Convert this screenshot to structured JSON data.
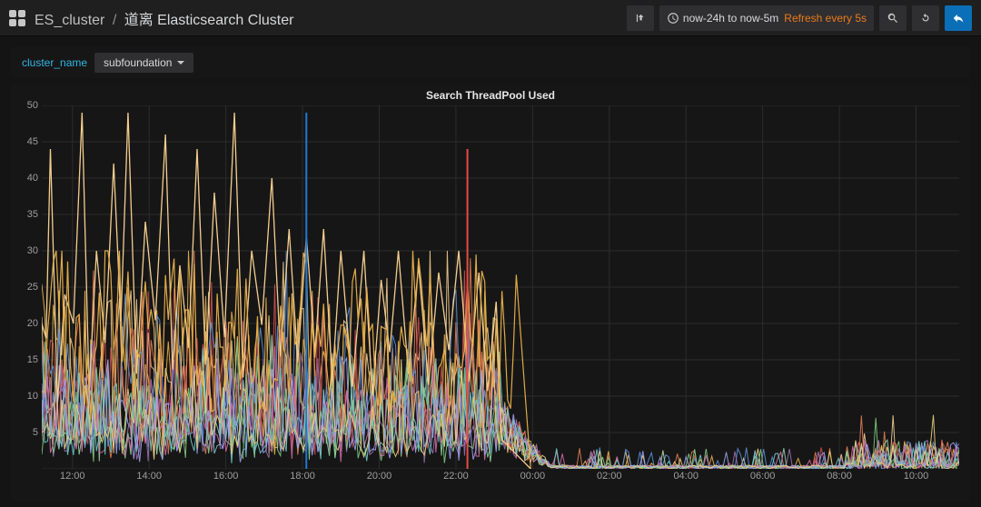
{
  "header": {
    "folder": "ES_cluster",
    "separator": "/",
    "title": "道离 Elasticsearch Cluster",
    "time_range": "now-24h to now-5m",
    "refresh_label": "Refresh every 5s"
  },
  "variables": {
    "label": "cluster_name",
    "value": "subfoundation"
  },
  "chart": {
    "type": "line",
    "title": "Search ThreadPool Used",
    "background_color": "#161616",
    "grid_color": "#2c2c2c",
    "text_color": "#9e9e9e",
    "ylim": [
      0,
      50
    ],
    "ytick_step": 5,
    "x_ticks": [
      "12:00",
      "14:00",
      "16:00",
      "18:00",
      "20:00",
      "22:00",
      "00:00",
      "02:00",
      "04:00",
      "06:00",
      "08:00",
      "10:00"
    ],
    "x_domain_points": 320,
    "breakpoint_index": 160,
    "series_colors": [
      "#f2cc8f",
      "#e8b04b",
      "#e07b53",
      "#c94f4f",
      "#5b8fd6",
      "#9a6fb0",
      "#7fc97f",
      "#8fd19e",
      "#d36ba6",
      "#6fcac9",
      "#a0a0f0",
      "#e7d27c"
    ],
    "highlight_spike": {
      "index": 92,
      "value": 49,
      "color": "#1f78d1",
      "width": 2
    },
    "red_spike": {
      "index": 148,
      "value": 44,
      "color": "#e24d42",
      "width": 2
    },
    "peak_series": {
      "color": "#f2cc8f",
      "peaks_before_break": [
        [
          3,
          44
        ],
        [
          8,
          24
        ],
        [
          14,
          49
        ],
        [
          19,
          30
        ],
        [
          25,
          42
        ],
        [
          30,
          49
        ],
        [
          36,
          34
        ],
        [
          43,
          46
        ],
        [
          48,
          28
        ],
        [
          54,
          44
        ],
        [
          60,
          38
        ],
        [
          67,
          49
        ],
        [
          73,
          30
        ],
        [
          80,
          40
        ],
        [
          86,
          33
        ],
        [
          92,
          32
        ],
        [
          98,
          33
        ],
        [
          104,
          30
        ],
        [
          112,
          30
        ],
        [
          118,
          26
        ],
        [
          124,
          30
        ],
        [
          131,
          28
        ],
        [
          138,
          27
        ],
        [
          145,
          30
        ],
        [
          152,
          27
        ],
        [
          158,
          23
        ]
      ]
    },
    "right_side_max": 9,
    "right_side_cluster_start": 280,
    "label_fontsize": 11
  }
}
